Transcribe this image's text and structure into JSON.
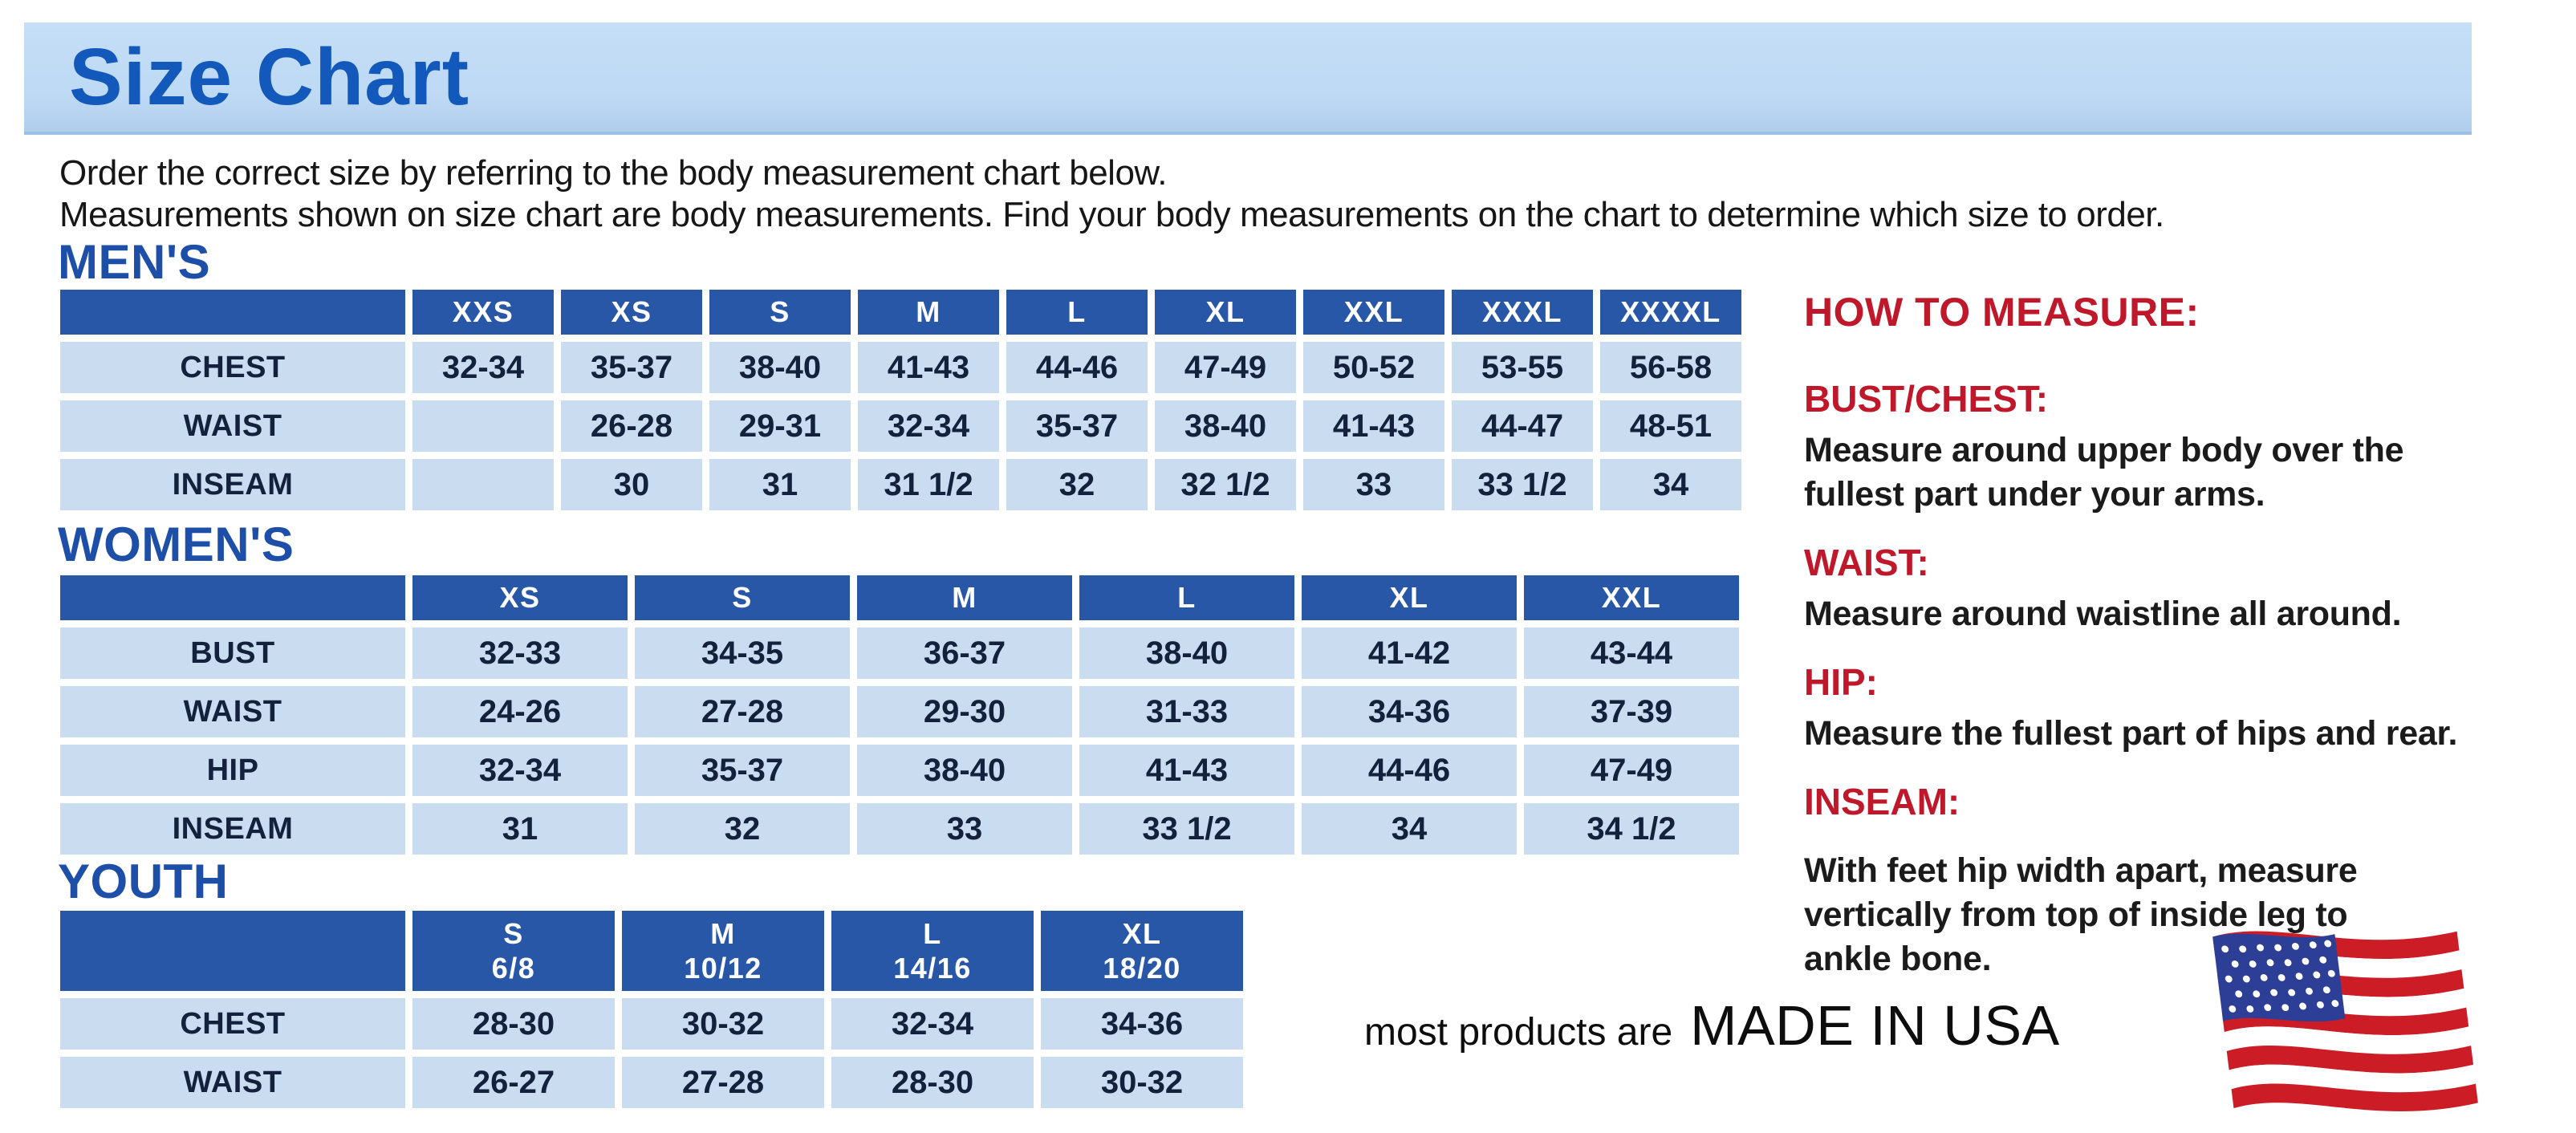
{
  "page": {
    "title": "Size Chart",
    "intro_line1": "Order the correct size by referring to the body measurement chart below.",
    "intro_line2": "Measurements shown on size chart are body measurements.  Find your body measurements on the chart to determine which size to order."
  },
  "colors": {
    "header_blue": "#2857a8",
    "cell_blue": "#cadcf0",
    "banner_blue": "#bdd9f4",
    "title_blue": "#1259bb",
    "section_blue": "#1e4fa8",
    "red": "#c0182b",
    "text_navy": "#14213c",
    "flag_red": "#cc1d27",
    "flag_blue": "#2d3e96"
  },
  "tables": {
    "mens": {
      "section_label": "MEN'S",
      "headers": [
        "",
        "XXS",
        "XS",
        "S",
        "M",
        "L",
        "XL",
        "XXL",
        "XXXL",
        "XXXXL"
      ],
      "rows": [
        {
          "label": "CHEST",
          "cells": [
            "32-34",
            "35-37",
            "38-40",
            "41-43",
            "44-46",
            "47-49",
            "50-52",
            "53-55",
            "56-58"
          ]
        },
        {
          "label": "WAIST",
          "cells": [
            "",
            "26-28",
            "29-31",
            "32-34",
            "35-37",
            "38-40",
            "41-43",
            "44-47",
            "48-51"
          ]
        },
        {
          "label": "INSEAM",
          "cells": [
            "",
            "30",
            "31",
            "31 1/2",
            "32",
            "32 1/2",
            "33",
            "33 1/2",
            "34"
          ]
        }
      ]
    },
    "womens": {
      "section_label": "WOMEN'S",
      "headers": [
        "",
        "XS",
        "S",
        "M",
        "L",
        "XL",
        "XXL"
      ],
      "rows": [
        {
          "label": "BUST",
          "cells": [
            "32-33",
            "34-35",
            "36-37",
            "38-40",
            "41-42",
            "43-44"
          ]
        },
        {
          "label": "WAIST",
          "cells": [
            "24-26",
            "27-28",
            "29-30",
            "31-33",
            "34-36",
            "37-39"
          ]
        },
        {
          "label": "HIP",
          "cells": [
            "32-34",
            "35-37",
            "38-40",
            "41-43",
            "44-46",
            "47-49"
          ]
        },
        {
          "label": "INSEAM",
          "cells": [
            "31",
            "32",
            "33",
            "33 1/2",
            "34",
            "34 1/2"
          ]
        }
      ]
    },
    "youth": {
      "section_label": "YOUTH",
      "headers": [
        "",
        "S\n6/8",
        "M\n10/12",
        "L\n14/16",
        "XL\n18/20"
      ],
      "rows": [
        {
          "label": "CHEST",
          "cells": [
            "28-30",
            "30-32",
            "32-34",
            "34-36"
          ]
        },
        {
          "label": "WAIST",
          "cells": [
            "26-27",
            "27-28",
            "28-30",
            "30-32"
          ]
        }
      ]
    }
  },
  "how_to_measure": {
    "title": "HOW TO MEASURE:",
    "items": [
      {
        "label": "BUST/CHEST:",
        "text": "Measure around upper body over the\nfullest part under your arms."
      },
      {
        "label": "WAIST:",
        "text": "Measure around waistline all around."
      },
      {
        "label": "HIP:",
        "text": "Measure the fullest part of hips and rear."
      },
      {
        "label": "INSEAM:",
        "text": "With feet hip width apart, measure\nvertically from top of inside leg to\nankle bone."
      }
    ]
  },
  "footer": {
    "made_in_prefix": "most products are",
    "made_in": "MADE IN USA",
    "flag_icon": "us-flag-icon"
  }
}
